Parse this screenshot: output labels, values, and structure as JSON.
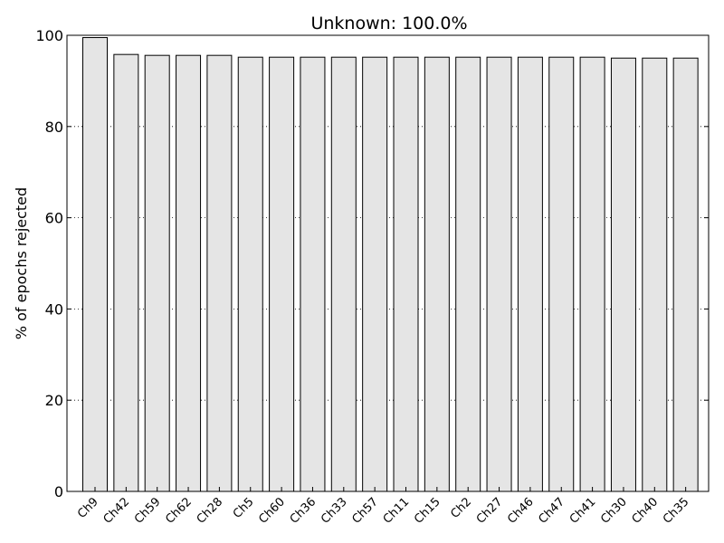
{
  "chart_data": {
    "type": "bar",
    "title": "Unknown: 100.0%",
    "xlabel": "",
    "ylabel": "% of epochs rejected",
    "ylim": [
      0,
      100
    ],
    "yticks": [
      "0",
      "20",
      "40",
      "60",
      "80",
      "100"
    ],
    "grid": "horizontal dotted",
    "categories": [
      "Ch9",
      "Ch42",
      "Ch59",
      "Ch62",
      "Ch28",
      "Ch5",
      "Ch60",
      "Ch36",
      "Ch33",
      "Ch57",
      "Ch11",
      "Ch15",
      "Ch2",
      "Ch27",
      "Ch46",
      "Ch47",
      "Ch41",
      "Ch30",
      "Ch40",
      "Ch35"
    ],
    "values": [
      99.5,
      95.8,
      95.6,
      95.6,
      95.6,
      95.2,
      95.2,
      95.2,
      95.2,
      95.2,
      95.2,
      95.2,
      95.2,
      95.2,
      95.2,
      95.2,
      95.2,
      95.0,
      95.0,
      95.0
    ],
    "bar_color": "#e5e5e5",
    "edge_color": "#000000"
  }
}
